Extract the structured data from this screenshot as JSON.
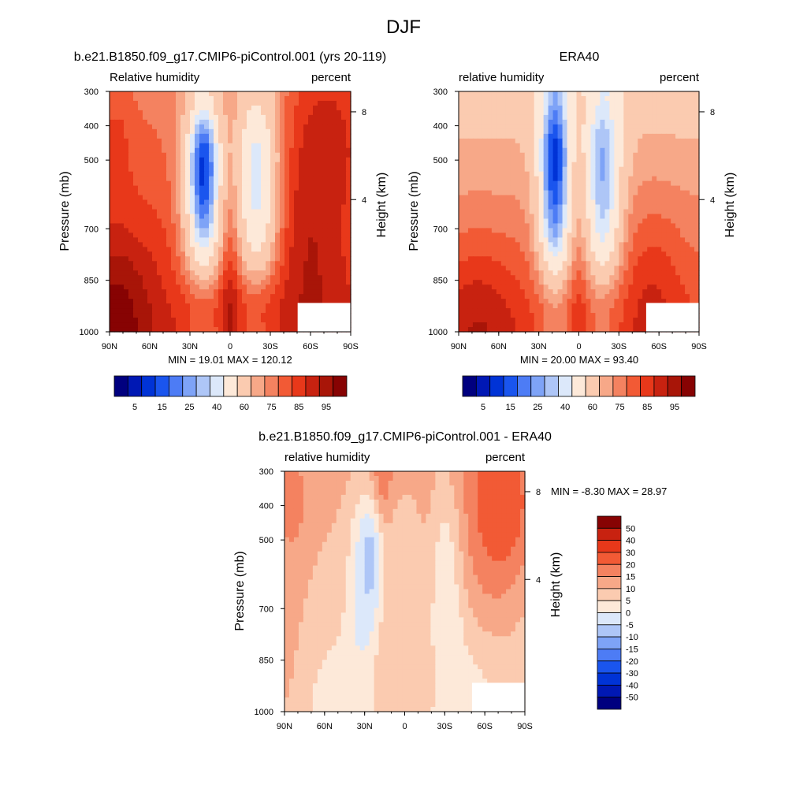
{
  "title": "DJF",
  "colors": {
    "rh": [
      "#00007f",
      "#0018b4",
      "#0033d6",
      "#1a55ee",
      "#4d7cf5",
      "#7ea3f7",
      "#aec6f7",
      "#dce8fa",
      "#fde9d9",
      "#fbcbb0",
      "#f7a888",
      "#f48260",
      "#f25a35",
      "#e8381a",
      "#c82210",
      "#a81508",
      "#870303"
    ],
    "diff": [
      "#00007f",
      "#0018b4",
      "#0033d6",
      "#1a55ee",
      "#4d7cf5",
      "#7ea3f7",
      "#aec6f7",
      "#dce8fa",
      "#fde9d9",
      "#fbcbb0",
      "#f7a888",
      "#f48260",
      "#f25a35",
      "#e8381a",
      "#c82210",
      "#870303"
    ]
  },
  "chart_data": [
    {
      "type": "heatmap",
      "title": "b.e21.B1850.f09_g17.CMIP6-piControl.001 (yrs 20-119)",
      "left_string": "Relative humidity",
      "right_string": "percent",
      "ylabel": "Pressure (mb)",
      "ylabel_right": "Height (km)",
      "x_ticks": [
        "90N",
        "60N",
        "30N",
        "0",
        "30S",
        "60S",
        "90S"
      ],
      "y_ticks": [
        "300",
        "400",
        "500",
        "700",
        "850",
        "1000"
      ],
      "y_right_ticks": [
        "8",
        "4"
      ],
      "min": 19.01,
      "max": 120.12,
      "minmax_text": "MIN =  19.01  MAX = 120.12",
      "colorbar_labels": [
        "5",
        "15",
        "25",
        "40",
        "60",
        "75",
        "85",
        "95"
      ]
    },
    {
      "type": "heatmap",
      "title": "ERA40",
      "left_string": "relative humidity",
      "right_string": "percent",
      "ylabel": "Pressure (mb)",
      "ylabel_right": "Height (km)",
      "x_ticks": [
        "90N",
        "60N",
        "30N",
        "0",
        "30S",
        "60S",
        "90S"
      ],
      "y_ticks": [
        "300",
        "400",
        "500",
        "700",
        "850",
        "1000"
      ],
      "y_right_ticks": [
        "8",
        "4"
      ],
      "min": 20.0,
      "max": 93.4,
      "minmax_text": "MIN =  20.00  MAX =  93.40",
      "colorbar_labels": [
        "5",
        "15",
        "25",
        "40",
        "60",
        "75",
        "85",
        "95"
      ]
    },
    {
      "type": "heatmap",
      "title": "b.e21.B1850.f09_g17.CMIP6-piControl.001 - ERA40",
      "left_string": "relative humidity",
      "right_string": "percent",
      "ylabel": "Pressure (mb)",
      "ylabel_right": "Height (km)",
      "x_ticks": [
        "90N",
        "60N",
        "30N",
        "0",
        "30S",
        "60S",
        "90S"
      ],
      "y_ticks": [
        "300",
        "400",
        "500",
        "700",
        "850",
        "1000"
      ],
      "y_right_ticks": [
        "8",
        "4"
      ],
      "min": -8.3,
      "max": 28.97,
      "minmax_text": "MIN =  -8.30  MAX =  28.97",
      "colorbar_labels": [
        "50",
        "40",
        "30",
        "20",
        "15",
        "10",
        "5",
        "0",
        "-5",
        "-10",
        "-15",
        "-20",
        "-30",
        "-40",
        "-50"
      ]
    }
  ]
}
